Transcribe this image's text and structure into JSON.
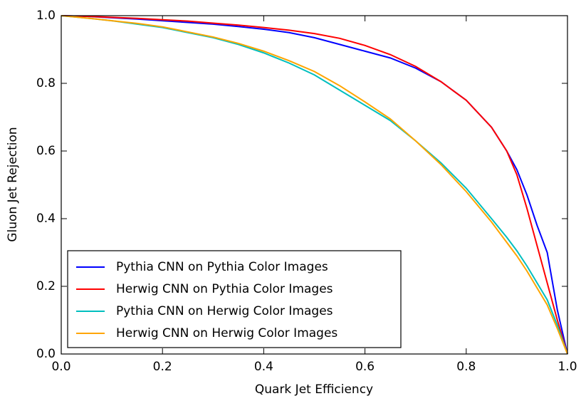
{
  "chart_data": {
    "type": "line",
    "xlabel": "Quark Jet Efficiency",
    "ylabel": "Gluon Jet Rejection",
    "x": [
      0,
      0.05,
      0.1,
      0.15,
      0.2,
      0.25,
      0.3,
      0.35,
      0.4,
      0.45,
      0.5,
      0.55,
      0.6,
      0.65,
      0.7,
      0.75,
      0.8,
      0.85,
      0.88,
      0.9,
      0.92,
      0.94,
      0.96,
      0.98,
      1.0
    ],
    "series": [
      {
        "name": "Pythia CNN on Pythia Color Images",
        "color": "#0000ff",
        "values": [
          1.0,
          0.998,
          0.994,
          0.99,
          0.985,
          0.98,
          0.975,
          0.968,
          0.96,
          0.95,
          0.935,
          0.915,
          0.895,
          0.875,
          0.845,
          0.805,
          0.75,
          0.67,
          0.6,
          0.545,
          0.47,
          0.38,
          0.3,
          0.13,
          0
        ]
      },
      {
        "name": "Herwig CNN on Pythia Color Images",
        "color": "#ff0000",
        "values": [
          1.0,
          0.998,
          0.995,
          0.992,
          0.988,
          0.984,
          0.978,
          0.972,
          0.965,
          0.957,
          0.947,
          0.933,
          0.912,
          0.885,
          0.85,
          0.805,
          0.75,
          0.67,
          0.6,
          0.53,
          0.43,
          0.32,
          0.21,
          0.1,
          0
        ]
      },
      {
        "name": "Pythia CNN on Herwig Color Images",
        "color": "#00bfbf",
        "values": [
          1.0,
          0.993,
          0.985,
          0.975,
          0.965,
          0.95,
          0.935,
          0.915,
          0.89,
          0.86,
          0.825,
          0.78,
          0.735,
          0.69,
          0.63,
          0.565,
          0.49,
          0.4,
          0.345,
          0.305,
          0.26,
          0.21,
          0.16,
          0.085,
          0
        ]
      },
      {
        "name": "Herwig CNN on Herwig Color Images",
        "color": "#ffa500",
        "values": [
          1.0,
          0.993,
          0.985,
          0.977,
          0.967,
          0.952,
          0.937,
          0.918,
          0.895,
          0.867,
          0.835,
          0.793,
          0.745,
          0.695,
          0.63,
          0.56,
          0.48,
          0.39,
          0.33,
          0.29,
          0.245,
          0.195,
          0.145,
          0.075,
          0
        ]
      }
    ],
    "xlim": [
      0,
      1.0
    ],
    "ylim": [
      0,
      1.0
    ],
    "xticks": [
      {
        "value": 0,
        "label": "0.0"
      },
      0.2,
      0.4,
      0.6,
      0.8,
      {
        "value": 1.0,
        "label": "1.0"
      }
    ],
    "yticks": [
      {
        "value": 0,
        "label": "0.0"
      },
      0.2,
      0.4,
      0.6,
      0.8,
      {
        "value": 1.0,
        "label": "1.0"
      }
    ],
    "legend": "lower left"
  }
}
